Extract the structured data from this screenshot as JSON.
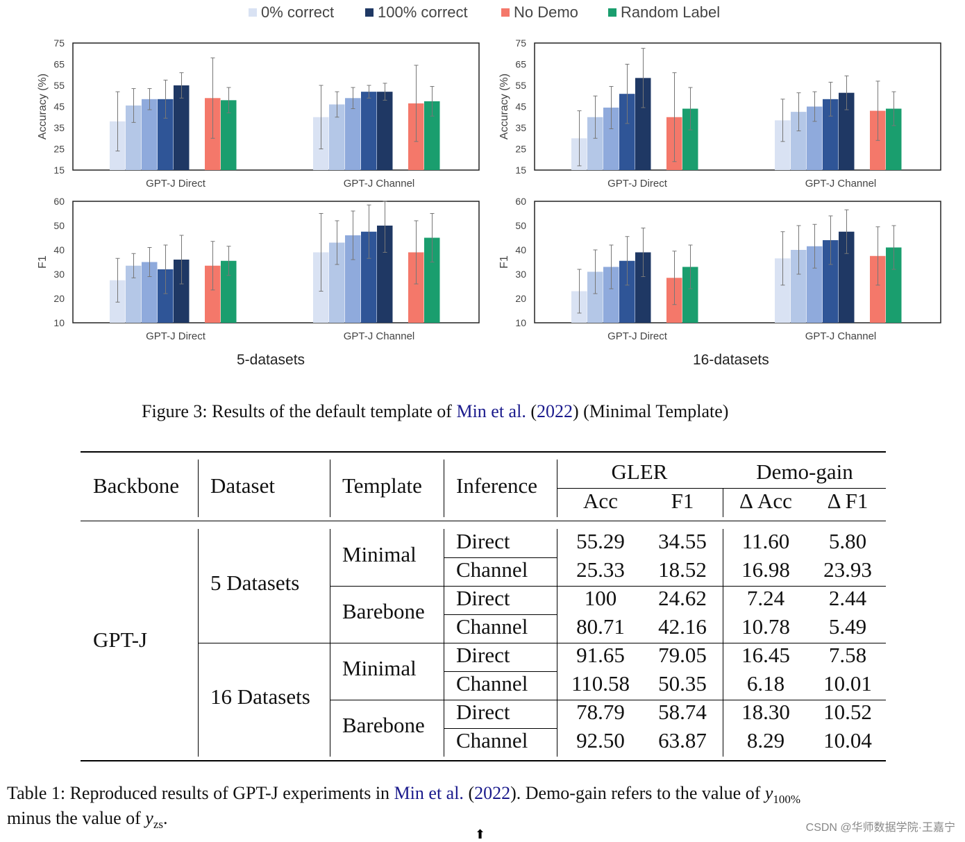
{
  "legend": [
    {
      "label": "0% correct",
      "color": "#d9e2f3"
    },
    {
      "label": "100% correct",
      "color": "#1f3864"
    },
    {
      "label": "No Demo",
      "color": "#f4786a"
    },
    {
      "label": "Random Label",
      "color": "#1a9e6e"
    }
  ],
  "bar_colors": [
    "#d9e2f3",
    "#b4c7e7",
    "#8faadc",
    "#2f5597",
    "#1f3864",
    "#f4786a",
    "#1a9e6e"
  ],
  "chart_data": [
    {
      "type": "bar",
      "panel": "5-datasets",
      "ylabel": "Accuracy (%)",
      "ylim": [
        15,
        75
      ],
      "yticks": [
        15,
        25,
        35,
        45,
        55,
        65,
        75
      ],
      "groups": [
        {
          "label": "GPT-J Direct",
          "values": [
            38,
            45.5,
            48.5,
            48.5,
            55,
            49,
            48
          ],
          "errors": [
            14,
            8,
            5,
            9,
            6,
            19,
            6
          ]
        },
        {
          "label": "GPT-J Channel",
          "values": [
            40,
            46,
            49,
            52,
            52,
            46.5,
            47.5
          ],
          "errors": [
            15,
            6,
            5,
            3,
            4,
            18,
            7
          ]
        }
      ]
    },
    {
      "type": "bar",
      "panel": "16-datasets",
      "ylabel": "Accuracy (%)",
      "ylim": [
        15,
        75
      ],
      "yticks": [
        15,
        25,
        35,
        45,
        55,
        65,
        75
      ],
      "groups": [
        {
          "label": "GPT-J Direct",
          "values": [
            30,
            40,
            44.5,
            51,
            58.5,
            40,
            44
          ],
          "errors": [
            13,
            10,
            10,
            14,
            14,
            21,
            10
          ]
        },
        {
          "label": "GPT-J Channel",
          "values": [
            38.5,
            42.5,
            45,
            48.5,
            51.5,
            43,
            44
          ],
          "errors": [
            10,
            9,
            7,
            8,
            8,
            14,
            8
          ]
        }
      ]
    },
    {
      "type": "bar",
      "panel": "5-datasets",
      "ylabel": "F1",
      "ylim": [
        10,
        60
      ],
      "yticks": [
        10,
        20,
        30,
        40,
        50,
        60
      ],
      "groups": [
        {
          "label": "GPT-J Direct",
          "values": [
            27.5,
            33.5,
            35,
            32,
            36,
            33.5,
            35.5
          ],
          "errors": [
            9,
            5,
            6,
            10,
            10,
            10,
            6
          ]
        },
        {
          "label": "GPT-J Channel",
          "values": [
            39,
            43,
            46,
            47.5,
            50,
            39,
            45
          ],
          "errors": [
            16,
            9,
            10,
            11,
            11,
            13,
            10
          ]
        }
      ]
    },
    {
      "type": "bar",
      "panel": "16-datasets",
      "ylabel": "F1",
      "ylim": [
        10,
        60
      ],
      "yticks": [
        10,
        20,
        30,
        40,
        50,
        60
      ],
      "groups": [
        {
          "label": "GPT-J Direct",
          "values": [
            23,
            31,
            33,
            35.5,
            39,
            28.5,
            33
          ],
          "errors": [
            9,
            9,
            9,
            10,
            10,
            11,
            9
          ]
        },
        {
          "label": "GPT-J Channel",
          "values": [
            36.5,
            40,
            41.5,
            44,
            47.5,
            37.5,
            41
          ],
          "errors": [
            11,
            10,
            9,
            10,
            9,
            12,
            9
          ]
        }
      ]
    }
  ],
  "panel_titles": {
    "left": "5-datasets",
    "right": "16-datasets"
  },
  "figure_caption": {
    "prefix": "Figure 3: Results of the default template of ",
    "author": "Min et al.",
    "open": " (",
    "year": "2022",
    "suffix": ") (Minimal Template)"
  },
  "table": {
    "headers": {
      "backbone": "Backbone",
      "dataset": "Dataset",
      "template": "Template",
      "inference": "Inference",
      "gler": "GLER",
      "demo_gain": "Demo-gain",
      "acc": "Acc",
      "f1": "F1",
      "dacc": "Δ Acc",
      "df1": "Δ F1"
    },
    "backbone": "GPT-J",
    "datasets": [
      "5 Datasets",
      "16 Datasets"
    ],
    "templates": [
      "Minimal",
      "Barebone",
      "Minimal",
      "Barebone"
    ],
    "rows": [
      {
        "inference": "Direct",
        "acc": "55.29",
        "f1": "34.55",
        "dacc": "11.60",
        "df1": "5.80"
      },
      {
        "inference": "Channel",
        "acc": "25.33",
        "f1": "18.52",
        "dacc": "16.98",
        "df1": "23.93"
      },
      {
        "inference": "Direct",
        "acc": "100",
        "f1": "24.62",
        "dacc": "7.24",
        "df1": "2.44"
      },
      {
        "inference": "Channel",
        "acc": "80.71",
        "f1": "42.16",
        "dacc": "10.78",
        "df1": "5.49"
      },
      {
        "inference": "Direct",
        "acc": "91.65",
        "f1": "79.05",
        "dacc": "16.45",
        "df1": "7.58"
      },
      {
        "inference": "Channel",
        "acc": "110.58",
        "f1": "50.35",
        "dacc": "6.18",
        "df1": "10.01"
      },
      {
        "inference": "Direct",
        "acc": "78.79",
        "f1": "58.74",
        "dacc": "18.30",
        "df1": "10.52"
      },
      {
        "inference": "Channel",
        "acc": "92.50",
        "f1": "63.87",
        "dacc": "8.29",
        "df1": "10.04"
      }
    ]
  },
  "table_caption": {
    "line1_prefix": "Table 1: Reproduced results of GPT-J experiments in ",
    "author": "Min et al.",
    "open": " (",
    "year": "2022",
    "line1_suffix": "). Demo-gain refers to the value of ",
    "y100": "y",
    "y100_sub": "100%",
    "line2_prefix": "minus the value of ",
    "yzs": "y",
    "yzs_sub": "zs",
    "line2_suffix": "."
  },
  "watermark": "CSDN @华师数据学院·王嘉宁",
  "cursor_glyph": "⬆"
}
